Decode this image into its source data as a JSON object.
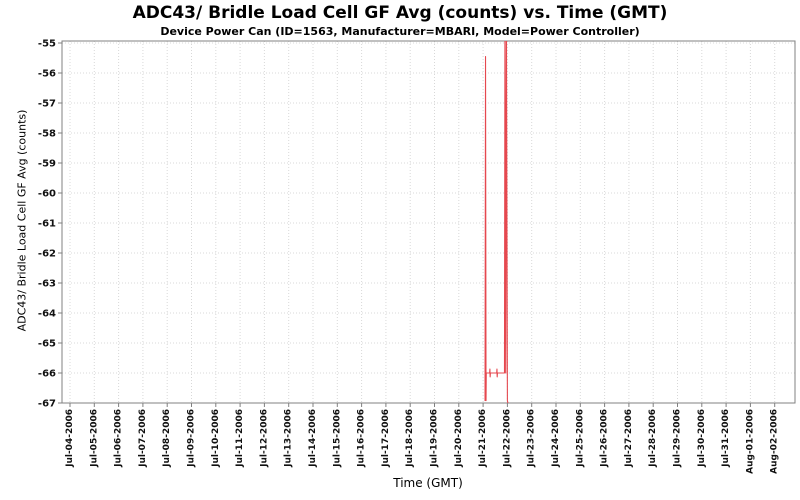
{
  "chart_data": {
    "type": "line",
    "title": "ADC43/ Bridle Load Cell GF Avg (counts) vs. Time (GMT)",
    "subtitle": "Device Power Can (ID=1563, Manufacturer=MBARI, Model=Power Controller)",
    "xlabel": "Time (GMT)",
    "ylabel": "ADC43/ Bridle Load Cell GF Avg (counts)",
    "ylim": [
      -67,
      -55
    ],
    "y_ticks": [
      -55,
      -56,
      -57,
      -58,
      -59,
      -60,
      -61,
      -62,
      -63,
      -64,
      -65,
      -66,
      -67
    ],
    "x_tick_labels": [
      "Jul-04-2006",
      "Jul-05-2006",
      "Jul-06-2006",
      "Jul-07-2006",
      "Jul-08-2006",
      "Jul-09-2006",
      "Jul-10-2006",
      "Jul-11-2006",
      "Jul-12-2006",
      "Jul-13-2006",
      "Jul-14-2006",
      "Jul-15-2006",
      "Jul-16-2006",
      "Jul-17-2006",
      "Jul-18-2006",
      "Jul-19-2006",
      "Jul-20-2006",
      "Jul-21-2006",
      "Jul-22-2006",
      "Jul-23-2006",
      "Jul-24-2006",
      "Jul-25-2006",
      "Jul-26-2006",
      "Jul-27-2006",
      "Jul-28-2006",
      "Jul-29-2006",
      "Jul-30-2006",
      "Jul-31-2006",
      "Aug-01-2006",
      "Aug-02-2006"
    ],
    "grid": "dotted, both axes, every tick",
    "legend": "none",
    "clip_note": "second spike near Jul-22 exceeds -55 and is clipped at the plot top",
    "series": [
      {
        "name": "ADC43/ Bridle Load Cell GF Avg",
        "color": "#e5484f",
        "points_days_value": [
          [
            17.08,
            -66.92
          ],
          [
            17.1,
            -55.45
          ],
          [
            17.12,
            -66.92
          ],
          [
            17.13,
            -66.0
          ],
          [
            17.27,
            -66.0
          ],
          [
            17.28,
            -65.87
          ],
          [
            17.29,
            -66.13
          ],
          [
            17.3,
            -66.0
          ],
          [
            17.56,
            -66.0
          ],
          [
            17.57,
            -65.87
          ],
          [
            17.58,
            -66.13
          ],
          [
            17.59,
            -66.0
          ],
          [
            17.88,
            -66.0
          ],
          [
            17.9,
            -54.2
          ],
          [
            17.93,
            -66.0
          ],
          [
            17.96,
            -54.2
          ],
          [
            18.0,
            -66.92
          ],
          [
            18.02,
            -67.0
          ]
        ]
      }
    ]
  },
  "colors": {
    "series": "#e5484f",
    "grid": "#d8d8d8",
    "frame": "#808080",
    "text": "#000000",
    "background": "#ffffff"
  }
}
